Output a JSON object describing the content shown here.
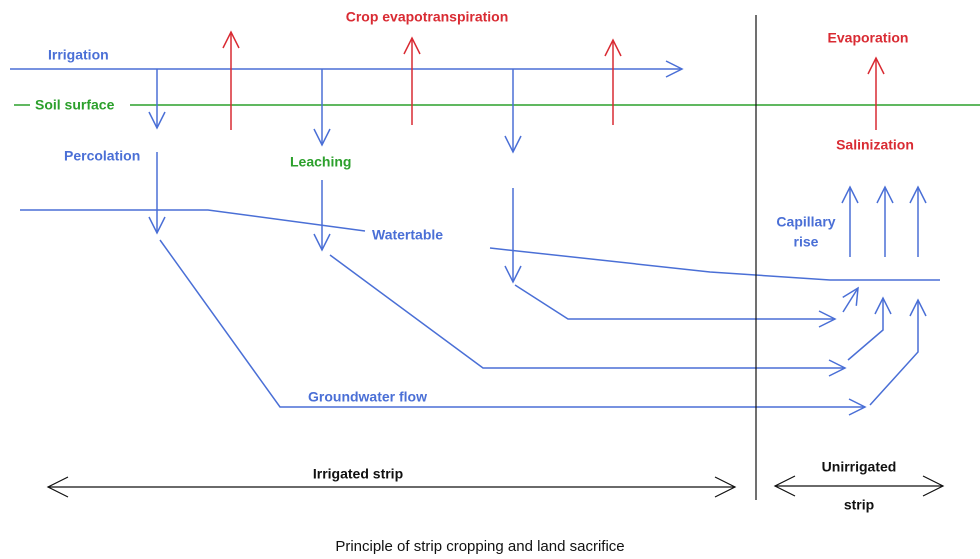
{
  "labels": {
    "crop_evapotranspiration": "Crop evapotranspiration",
    "irrigation": "Irrigation",
    "soil_surface": "Soil surface",
    "percolation": "Percolation",
    "leaching": "Leaching",
    "watertable": "Watertable",
    "groundwater_flow": "Groundwater flow",
    "evaporation": "Evaporation",
    "salinization": "Salinization",
    "capillary_rise": [
      "Capillary",
      "rise"
    ],
    "irrigated_strip": "Irrigated strip",
    "unirrigated_strip": [
      "Unirrigated",
      "strip"
    ]
  },
  "caption": "Principle of strip cropping and land sacrifice"
}
